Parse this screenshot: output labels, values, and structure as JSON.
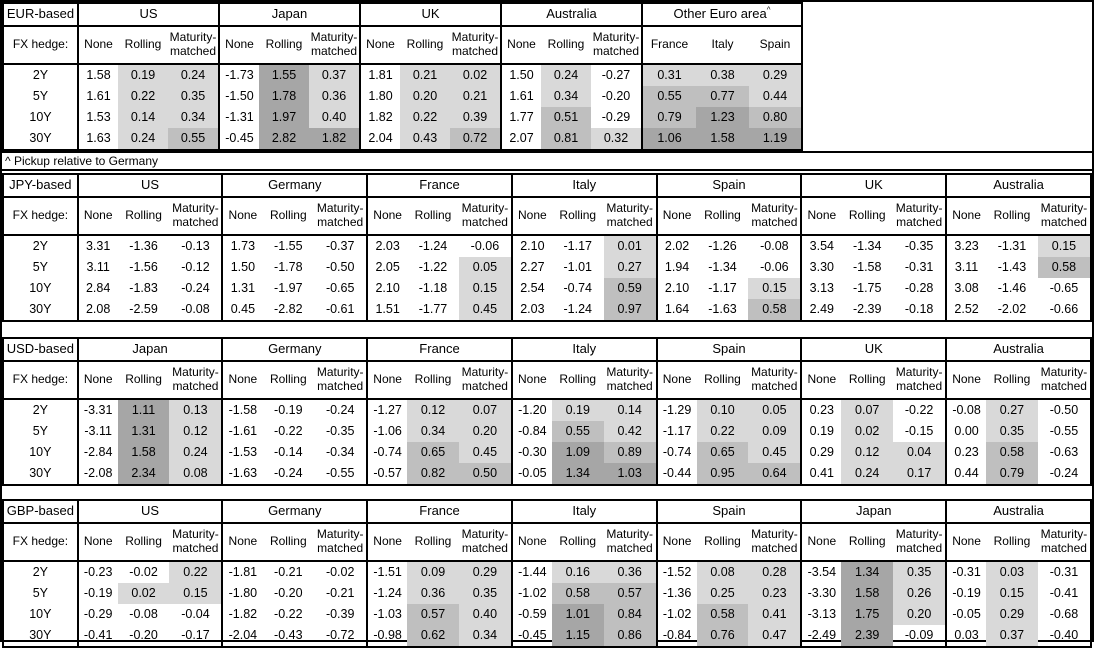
{
  "page": {
    "note": "^ Pickup relative to Germany"
  },
  "colors": {
    "shade_light": "#d9d9d9",
    "shade_medium": "#bfbfbf",
    "shade_dark": "#a6a6a6",
    "border": "#000000",
    "background": "#ffffff"
  },
  "shade_rules": {
    "comment": "cells in shaded columns: value >= dark_min -> dark, >= medium_min -> medium, >= light_min -> light, else white",
    "light_min": 0,
    "medium_min": 0.5,
    "dark_min": 1.0
  },
  "columns": {
    "fx_hedge_label": "FX hedge:",
    "sub": [
      "None",
      "Rolling",
      "Maturity-matched"
    ]
  },
  "maturities": [
    "2Y",
    "5Y",
    "10Y",
    "30Y"
  ],
  "tables": [
    {
      "id": "eur-based",
      "label": "EUR-based",
      "groups": [
        {
          "name": "US",
          "rows": [
            [
              "1.58",
              "0.19",
              "0.24"
            ],
            [
              "1.61",
              "0.22",
              "0.35"
            ],
            [
              "1.53",
              "0.14",
              "0.34"
            ],
            [
              "1.63",
              "0.24",
              "0.55"
            ]
          ]
        },
        {
          "name": "Japan",
          "rows": [
            [
              "-1.73",
              "1.55",
              "0.37"
            ],
            [
              "-1.50",
              "1.78",
              "0.36"
            ],
            [
              "-1.31",
              "1.97",
              "0.40"
            ],
            [
              "-0.45",
              "2.82",
              "1.82"
            ]
          ]
        },
        {
          "name": "UK",
          "rows": [
            [
              "1.81",
              "0.21",
              "0.02"
            ],
            [
              "1.80",
              "0.20",
              "0.21"
            ],
            [
              "1.82",
              "0.22",
              "0.39"
            ],
            [
              "2.04",
              "0.43",
              "0.72"
            ]
          ]
        },
        {
          "name": "Australia",
          "rows": [
            [
              "1.50",
              "0.24",
              "-0.27"
            ],
            [
              "1.61",
              "0.34",
              "-0.20"
            ],
            [
              "1.77",
              "0.51",
              "-0.29"
            ],
            [
              "2.07",
              "0.81",
              "0.32"
            ]
          ]
        },
        {
          "name": "Other Euro area",
          "sup": "^",
          "cols": [
            "France",
            "Italy",
            "Spain"
          ],
          "shaded": [
            true,
            true,
            true
          ],
          "rows": [
            [
              "0.31",
              "0.38",
              "0.29"
            ],
            [
              "0.55",
              "0.77",
              "0.44"
            ],
            [
              "0.79",
              "1.23",
              "0.80"
            ],
            [
              "1.06",
              "1.58",
              "1.19"
            ]
          ]
        }
      ]
    },
    {
      "id": "jpy-based",
      "label": "JPY-based",
      "groups": [
        {
          "name": "US",
          "rows": [
            [
              "3.31",
              "-1.36",
              "-0.13"
            ],
            [
              "3.11",
              "-1.56",
              "-0.12"
            ],
            [
              "2.84",
              "-1.83",
              "-0.24"
            ],
            [
              "2.08",
              "-2.59",
              "-0.08"
            ]
          ]
        },
        {
          "name": "Germany",
          "rows": [
            [
              "1.73",
              "-1.55",
              "-0.37"
            ],
            [
              "1.50",
              "-1.78",
              "-0.50"
            ],
            [
              "1.31",
              "-1.97",
              "-0.65"
            ],
            [
              "0.45",
              "-2.82",
              "-0.61"
            ]
          ]
        },
        {
          "name": "France",
          "rows": [
            [
              "2.03",
              "-1.24",
              "-0.06"
            ],
            [
              "2.05",
              "-1.22",
              "0.05"
            ],
            [
              "2.10",
              "-1.18",
              "0.15"
            ],
            [
              "1.51",
              "-1.77",
              "0.45"
            ]
          ]
        },
        {
          "name": "Italy",
          "rows": [
            [
              "2.10",
              "-1.17",
              "0.01"
            ],
            [
              "2.27",
              "-1.01",
              "0.27"
            ],
            [
              "2.54",
              "-0.74",
              "0.59"
            ],
            [
              "2.03",
              "-1.24",
              "0.97"
            ]
          ]
        },
        {
          "name": "Spain",
          "rows": [
            [
              "2.02",
              "-1.26",
              "-0.08"
            ],
            [
              "1.94",
              "-1.34",
              "-0.06"
            ],
            [
              "2.10",
              "-1.17",
              "0.15"
            ],
            [
              "1.64",
              "-1.63",
              "0.58"
            ]
          ]
        },
        {
          "name": "UK",
          "rows": [
            [
              "3.54",
              "-1.34",
              "-0.35"
            ],
            [
              "3.30",
              "-1.58",
              "-0.31"
            ],
            [
              "3.13",
              "-1.75",
              "-0.28"
            ],
            [
              "2.49",
              "-2.39",
              "-0.18"
            ]
          ]
        },
        {
          "name": "Australia",
          "rows": [
            [
              "3.23",
              "-1.31",
              "0.15"
            ],
            [
              "3.11",
              "-1.43",
              "0.58"
            ],
            [
              "3.08",
              "-1.46",
              "-0.65"
            ],
            [
              "2.52",
              "-2.02",
              "-0.66"
            ]
          ]
        }
      ]
    },
    {
      "id": "usd-based",
      "label": "USD-based",
      "groups": [
        {
          "name": "Japan",
          "rows": [
            [
              "-3.31",
              "1.11",
              "0.13"
            ],
            [
              "-3.11",
              "1.31",
              "0.12"
            ],
            [
              "-2.84",
              "1.58",
              "0.24"
            ],
            [
              "-2.08",
              "2.34",
              "0.08"
            ]
          ]
        },
        {
          "name": "Germany",
          "rows": [
            [
              "-1.58",
              "-0.19",
              "-0.24"
            ],
            [
              "-1.61",
              "-0.22",
              "-0.35"
            ],
            [
              "-1.53",
              "-0.14",
              "-0.34"
            ],
            [
              "-1.63",
              "-0.24",
              "-0.55"
            ]
          ]
        },
        {
          "name": "France",
          "rows": [
            [
              "-1.27",
              "0.12",
              "0.07"
            ],
            [
              "-1.06",
              "0.34",
              "0.20"
            ],
            [
              "-0.74",
              "0.65",
              "0.45"
            ],
            [
              "-0.57",
              "0.82",
              "0.50"
            ]
          ]
        },
        {
          "name": "Italy",
          "rows": [
            [
              "-1.20",
              "0.19",
              "0.14"
            ],
            [
              "-0.84",
              "0.55",
              "0.42"
            ],
            [
              "-0.30",
              "1.09",
              "0.89"
            ],
            [
              "-0.05",
              "1.34",
              "1.03"
            ]
          ]
        },
        {
          "name": "Spain",
          "rows": [
            [
              "-1.29",
              "0.10",
              "0.05"
            ],
            [
              "-1.17",
              "0.22",
              "0.09"
            ],
            [
              "-0.74",
              "0.65",
              "0.45"
            ],
            [
              "-0.44",
              "0.95",
              "0.64"
            ]
          ]
        },
        {
          "name": "UK",
          "rows": [
            [
              "0.23",
              "0.07",
              "-0.22"
            ],
            [
              "0.19",
              "0.02",
              "-0.15"
            ],
            [
              "0.29",
              "0.12",
              "0.04"
            ],
            [
              "0.41",
              "0.24",
              "0.17"
            ]
          ]
        },
        {
          "name": "Australia",
          "rows": [
            [
              "-0.08",
              "0.27",
              "-0.50"
            ],
            [
              "0.00",
              "0.35",
              "-0.55"
            ],
            [
              "0.23",
              "0.58",
              "-0.63"
            ],
            [
              "0.44",
              "0.79",
              "-0.24"
            ]
          ]
        }
      ]
    },
    {
      "id": "gbp-based",
      "label": "GBP-based",
      "groups": [
        {
          "name": "US",
          "rows": [
            [
              "-0.23",
              "-0.02",
              "0.22"
            ],
            [
              "-0.19",
              "0.02",
              "0.15"
            ],
            [
              "-0.29",
              "-0.08",
              "-0.04"
            ],
            [
              "-0.41",
              "-0.20",
              "-0.17"
            ]
          ]
        },
        {
          "name": "Germany",
          "rows": [
            [
              "-1.81",
              "-0.21",
              "-0.02"
            ],
            [
              "-1.80",
              "-0.20",
              "-0.21"
            ],
            [
              "-1.82",
              "-0.22",
              "-0.39"
            ],
            [
              "-2.04",
              "-0.43",
              "-0.72"
            ]
          ]
        },
        {
          "name": "France",
          "rows": [
            [
              "-1.51",
              "0.09",
              "0.29"
            ],
            [
              "-1.24",
              "0.36",
              "0.35"
            ],
            [
              "-1.03",
              "0.57",
              "0.40"
            ],
            [
              "-0.98",
              "0.62",
              "0.34"
            ]
          ]
        },
        {
          "name": "Italy",
          "rows": [
            [
              "-1.44",
              "0.16",
              "0.36"
            ],
            [
              "-1.02",
              "0.58",
              "0.57"
            ],
            [
              "-0.59",
              "1.01",
              "0.84"
            ],
            [
              "-0.45",
              "1.15",
              "0.86"
            ]
          ]
        },
        {
          "name": "Spain",
          "rows": [
            [
              "-1.52",
              "0.08",
              "0.28"
            ],
            [
              "-1.36",
              "0.25",
              "0.23"
            ],
            [
              "-1.02",
              "0.58",
              "0.41"
            ],
            [
              "-0.84",
              "0.76",
              "0.47"
            ]
          ]
        },
        {
          "name": "Japan",
          "rows": [
            [
              "-3.54",
              "1.34",
              "0.35"
            ],
            [
              "-3.30",
              "1.58",
              "0.26"
            ],
            [
              "-3.13",
              "1.75",
              "0.20"
            ],
            [
              "-2.49",
              "2.39",
              "-0.09"
            ]
          ]
        },
        {
          "name": "Australia",
          "rows": [
            [
              "-0.31",
              "0.03",
              "-0.31"
            ],
            [
              "-0.19",
              "0.15",
              "-0.41"
            ],
            [
              "-0.05",
              "0.29",
              "-0.68"
            ],
            [
              "0.03",
              "0.37",
              "-0.40"
            ]
          ]
        }
      ]
    }
  ]
}
